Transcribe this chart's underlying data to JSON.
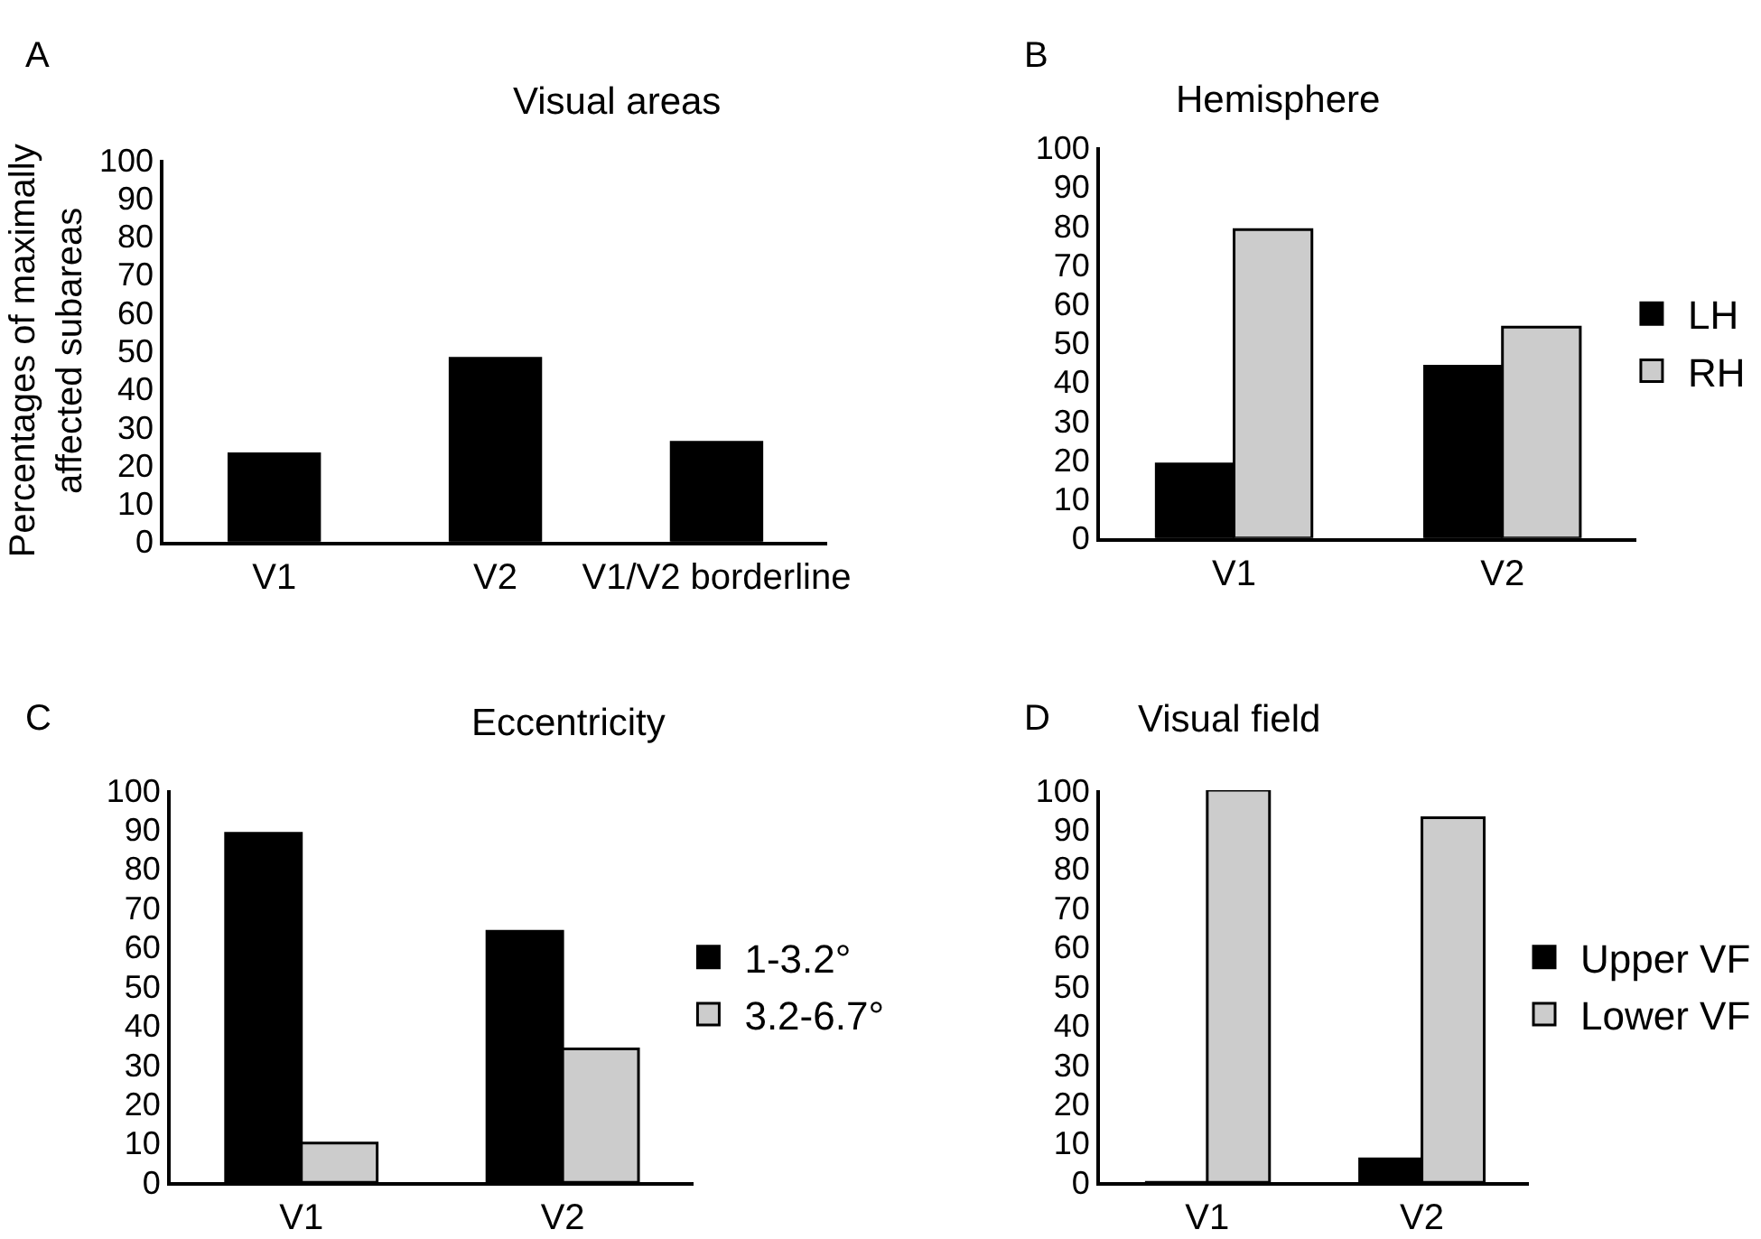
{
  "chart_data": [
    {
      "type": "bar",
      "title": "Visual areas",
      "annotations": [
        "A"
      ],
      "ylabel": "Percentages of maximally\naffected subareas",
      "categories": [
        "V1",
        "V2",
        "V1/V2 borderline"
      ],
      "series": [
        {
          "color": "#000000",
          "values": [
            23,
            48,
            26
          ]
        }
      ],
      "ylim": [
        0,
        100
      ],
      "yticks": [
        0,
        10,
        20,
        30,
        40,
        50,
        60,
        70,
        80,
        90,
        100
      ],
      "grid": false,
      "legend": false
    },
    {
      "type": "bar",
      "title": "Hemisphere",
      "annotations": [
        "B"
      ],
      "categories": [
        "V1",
        "V2"
      ],
      "series": [
        {
          "name": "LH",
          "color": "#000000",
          "values": [
            19,
            44
          ]
        },
        {
          "name": "RH",
          "color": "#cccccc",
          "values": [
            79,
            54
          ]
        }
      ],
      "ylim": [
        0,
        100
      ],
      "yticks": [
        0,
        10,
        20,
        30,
        40,
        50,
        60,
        70,
        80,
        90,
        100
      ],
      "grid": false,
      "legend": "right"
    },
    {
      "type": "bar",
      "title": "Eccentricity",
      "annotations": [
        "C"
      ],
      "categories": [
        "V1",
        "V2"
      ],
      "series": [
        {
          "name": "1-3.2°",
          "color": "#000000",
          "values": [
            89,
            64
          ]
        },
        {
          "name": "3.2-6.7°",
          "color": "#cccccc",
          "values": [
            10,
            34
          ]
        }
      ],
      "ylim": [
        0,
        100
      ],
      "yticks": [
        0,
        10,
        20,
        30,
        40,
        50,
        60,
        70,
        80,
        90,
        100
      ],
      "grid": false,
      "legend": "right"
    },
    {
      "type": "bar",
      "title": "Visual field",
      "annotations": [
        "D"
      ],
      "categories": [
        "V1",
        "V2"
      ],
      "series": [
        {
          "name": "Upper VF",
          "color": "#000000",
          "values": [
            0,
            6
          ]
        },
        {
          "name": "Lower VF",
          "color": "#cccccc",
          "values": [
            100,
            93
          ]
        }
      ],
      "ylim": [
        0,
        100
      ],
      "yticks": [
        0,
        10,
        20,
        30,
        40,
        50,
        60,
        70,
        80,
        90,
        100
      ],
      "grid": false,
      "legend": "right"
    }
  ]
}
